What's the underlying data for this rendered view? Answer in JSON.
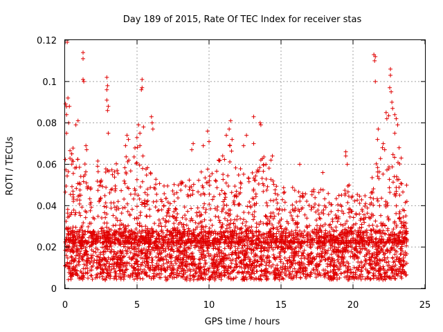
{
  "chart_data": {
    "type": "scatter",
    "title": "Day 189 of 2015, Rate Of TEC Index for receiver stas",
    "xlabel": "GPS time / hours",
    "ylabel": "ROTI / TECUs",
    "xlim": [
      0,
      25
    ],
    "ylim": [
      0,
      0.12
    ],
    "xticks": [
      0,
      5,
      10,
      15,
      20,
      25
    ],
    "xtick_labels": [
      "0",
      "5",
      "10",
      "15",
      "20",
      "25"
    ],
    "yticks": [
      0,
      0.02,
      0.04,
      0.06,
      0.08,
      0.1,
      0.12
    ],
    "ytick_labels": [
      "0",
      "0.02",
      "0.04",
      "0.06",
      "0.08",
      "0.1",
      "0.12"
    ],
    "grid": true,
    "marker": "+",
    "series": [
      {
        "name": "ROTI",
        "color": "#e00000",
        "x_range": [
          0,
          23.75
        ],
        "envelope_hours": [
          0,
          0.5,
          1,
          1.5,
          2,
          3,
          4,
          5,
          5.5,
          6,
          7,
          8,
          9,
          10,
          11,
          11.5,
          12,
          13,
          13.5,
          14,
          15,
          16,
          17,
          18,
          19,
          19.5,
          20,
          21,
          21.5,
          22,
          22.5,
          23,
          23.75
        ],
        "envelope_max": [
          0.095,
          0.07,
          0.065,
          0.06,
          0.062,
          0.065,
          0.06,
          0.075,
          0.065,
          0.055,
          0.05,
          0.055,
          0.055,
          0.06,
          0.065,
          0.07,
          0.06,
          0.058,
          0.075,
          0.06,
          0.05,
          0.05,
          0.048,
          0.05,
          0.045,
          0.055,
          0.045,
          0.048,
          0.06,
          0.07,
          0.085,
          0.065,
          0.05
        ],
        "baseline_range": [
          0.004,
          0.028
        ],
        "peaks": [
          {
            "x": 0.15,
            "y": 0.119
          },
          {
            "x": 0.2,
            "y": 0.092
          },
          {
            "x": 0.3,
            "y": 0.088
          },
          {
            "x": 0.1,
            "y": 0.084
          },
          {
            "x": 0.25,
            "y": 0.08
          },
          {
            "x": 0.1,
            "y": 0.075
          },
          {
            "x": 0.9,
            "y": 0.081
          },
          {
            "x": 0.75,
            "y": 0.079
          },
          {
            "x": 1.25,
            "y": 0.114
          },
          {
            "x": 1.25,
            "y": 0.111
          },
          {
            "x": 1.25,
            "y": 0.101
          },
          {
            "x": 1.3,
            "y": 0.1
          },
          {
            "x": 1.45,
            "y": 0.069
          },
          {
            "x": 1.5,
            "y": 0.067
          },
          {
            "x": 2.9,
            "y": 0.102
          },
          {
            "x": 2.95,
            "y": 0.098
          },
          {
            "x": 2.9,
            "y": 0.096
          },
          {
            "x": 2.9,
            "y": 0.091
          },
          {
            "x": 3.0,
            "y": 0.088
          },
          {
            "x": 2.95,
            "y": 0.086
          },
          {
            "x": 3.0,
            "y": 0.075
          },
          {
            "x": 4.3,
            "y": 0.074
          },
          {
            "x": 4.4,
            "y": 0.072
          },
          {
            "x": 4.2,
            "y": 0.069
          },
          {
            "x": 5.35,
            "y": 0.101
          },
          {
            "x": 5.35,
            "y": 0.097
          },
          {
            "x": 5.3,
            "y": 0.096
          },
          {
            "x": 5.1,
            "y": 0.079
          },
          {
            "x": 5.2,
            "y": 0.075
          },
          {
            "x": 5.45,
            "y": 0.078
          },
          {
            "x": 5.2,
            "y": 0.069
          },
          {
            "x": 6.0,
            "y": 0.083
          },
          {
            "x": 6.05,
            "y": 0.08
          },
          {
            "x": 6.1,
            "y": 0.077
          },
          {
            "x": 8.8,
            "y": 0.067
          },
          {
            "x": 8.9,
            "y": 0.07
          },
          {
            "x": 9.6,
            "y": 0.069
          },
          {
            "x": 9.9,
            "y": 0.076
          },
          {
            "x": 10.0,
            "y": 0.071
          },
          {
            "x": 11.2,
            "y": 0.074
          },
          {
            "x": 11.5,
            "y": 0.081
          },
          {
            "x": 11.4,
            "y": 0.077
          },
          {
            "x": 11.6,
            "y": 0.072
          },
          {
            "x": 11.45,
            "y": 0.069
          },
          {
            "x": 12.6,
            "y": 0.074
          },
          {
            "x": 12.4,
            "y": 0.069
          },
          {
            "x": 13.1,
            "y": 0.083
          },
          {
            "x": 13.55,
            "y": 0.08
          },
          {
            "x": 13.6,
            "y": 0.079
          },
          {
            "x": 13.1,
            "y": 0.07
          },
          {
            "x": 14.4,
            "y": 0.064
          },
          {
            "x": 14.3,
            "y": 0.062
          },
          {
            "x": 16.3,
            "y": 0.06
          },
          {
            "x": 17.9,
            "y": 0.056
          },
          {
            "x": 19.5,
            "y": 0.066
          },
          {
            "x": 19.5,
            "y": 0.064
          },
          {
            "x": 19.6,
            "y": 0.06
          },
          {
            "x": 21.45,
            "y": 0.113
          },
          {
            "x": 21.55,
            "y": 0.112
          },
          {
            "x": 21.5,
            "y": 0.11
          },
          {
            "x": 21.55,
            "y": 0.1
          },
          {
            "x": 21.75,
            "y": 0.077
          },
          {
            "x": 21.7,
            "y": 0.072
          },
          {
            "x": 22.1,
            "y": 0.07
          },
          {
            "x": 22.2,
            "y": 0.067
          },
          {
            "x": 22.3,
            "y": 0.085
          },
          {
            "x": 22.35,
            "y": 0.082
          },
          {
            "x": 22.6,
            "y": 0.106
          },
          {
            "x": 22.6,
            "y": 0.103
          },
          {
            "x": 22.55,
            "y": 0.097
          },
          {
            "x": 22.65,
            "y": 0.095
          },
          {
            "x": 22.7,
            "y": 0.09
          },
          {
            "x": 22.75,
            "y": 0.087
          },
          {
            "x": 22.9,
            "y": 0.084
          },
          {
            "x": 23.0,
            "y": 0.082
          },
          {
            "x": 22.9,
            "y": 0.075
          },
          {
            "x": 23.1,
            "y": 0.079
          },
          {
            "x": 23.2,
            "y": 0.068
          },
          {
            "x": 23.35,
            "y": 0.063
          }
        ]
      }
    ]
  }
}
